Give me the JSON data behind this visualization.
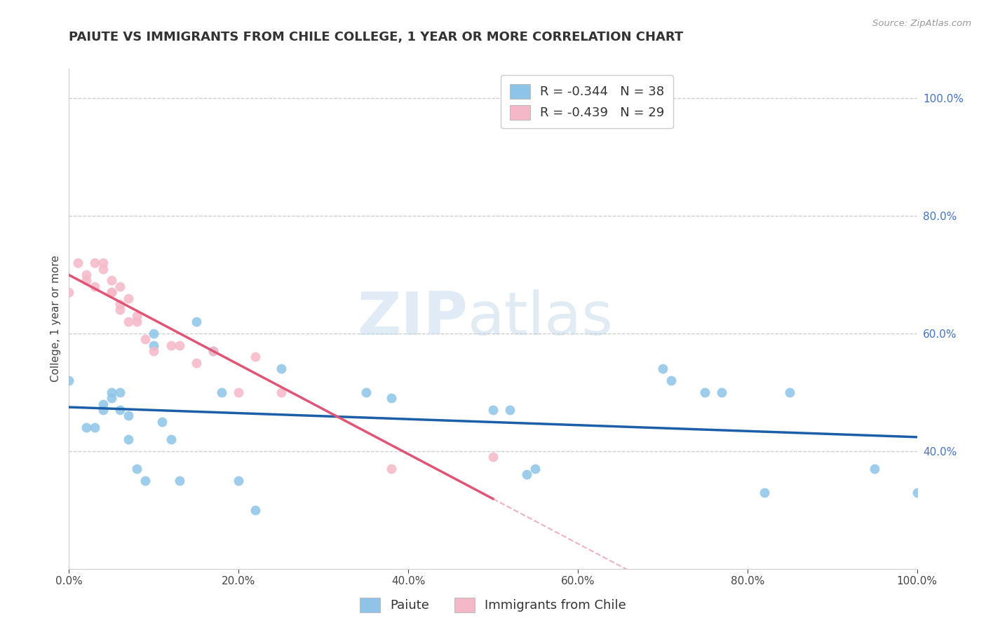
{
  "title": "PAIUTE VS IMMIGRANTS FROM CHILE COLLEGE, 1 YEAR OR MORE CORRELATION CHART",
  "source_text": "Source: ZipAtlas.com",
  "ylabel": "College, 1 year or more",
  "legend_label1": "Paiute",
  "legend_label2": "Immigrants from Chile",
  "r1": -0.344,
  "n1": 38,
  "r2": -0.439,
  "n2": 29,
  "watermark_zip": "ZIP",
  "watermark_atlas": "atlas",
  "xlim": [
    0.0,
    1.0
  ],
  "ylim": [
    0.2,
    1.05
  ],
  "right_ytick_labels": [
    "40.0%",
    "60.0%",
    "80.0%",
    "100.0%"
  ],
  "right_ytick_values": [
    0.4,
    0.6,
    0.8,
    1.0
  ],
  "xtick_labels": [
    "0.0%",
    "20.0%",
    "40.0%",
    "60.0%",
    "80.0%",
    "100.0%"
  ],
  "xtick_values": [
    0.0,
    0.2,
    0.4,
    0.6,
    0.8,
    1.0
  ],
  "color_blue": "#8DC4E8",
  "color_pink": "#F5B8C8",
  "color_blue_line": "#1A5FA8",
  "color_pink_line": "#E05575",
  "background_color": "#ffffff",
  "grid_color": "#cccccc",
  "paiute_x": [
    0.0,
    0.02,
    0.03,
    0.04,
    0.04,
    0.05,
    0.05,
    0.06,
    0.06,
    0.07,
    0.07,
    0.08,
    0.09,
    0.1,
    0.1,
    0.11,
    0.12,
    0.13,
    0.15,
    0.17,
    0.18,
    0.2,
    0.22,
    0.25,
    0.35,
    0.38,
    0.5,
    0.52,
    0.54,
    0.55,
    0.7,
    0.71,
    0.75,
    0.77,
    0.82,
    0.85,
    0.95,
    1.0
  ],
  "paiute_y": [
    0.52,
    0.44,
    0.44,
    0.47,
    0.48,
    0.49,
    0.5,
    0.47,
    0.5,
    0.42,
    0.46,
    0.37,
    0.35,
    0.6,
    0.58,
    0.45,
    0.42,
    0.35,
    0.62,
    0.57,
    0.5,
    0.35,
    0.3,
    0.54,
    0.5,
    0.49,
    0.47,
    0.47,
    0.36,
    0.37,
    0.54,
    0.52,
    0.5,
    0.5,
    0.33,
    0.5,
    0.37,
    0.33
  ],
  "chile_x": [
    0.0,
    0.01,
    0.02,
    0.02,
    0.03,
    0.03,
    0.04,
    0.04,
    0.05,
    0.05,
    0.05,
    0.06,
    0.06,
    0.06,
    0.07,
    0.07,
    0.08,
    0.08,
    0.09,
    0.1,
    0.12,
    0.13,
    0.15,
    0.17,
    0.2,
    0.22,
    0.25,
    0.38,
    0.5
  ],
  "chile_y": [
    0.67,
    0.72,
    0.7,
    0.69,
    0.72,
    0.68,
    0.72,
    0.71,
    0.69,
    0.67,
    0.67,
    0.68,
    0.64,
    0.65,
    0.66,
    0.62,
    0.62,
    0.63,
    0.59,
    0.57,
    0.58,
    0.58,
    0.55,
    0.57,
    0.5,
    0.56,
    0.5,
    0.37,
    0.39
  ],
  "title_fontsize": 13,
  "axis_fontsize": 11,
  "tick_fontsize": 11,
  "legend_fontsize": 13
}
